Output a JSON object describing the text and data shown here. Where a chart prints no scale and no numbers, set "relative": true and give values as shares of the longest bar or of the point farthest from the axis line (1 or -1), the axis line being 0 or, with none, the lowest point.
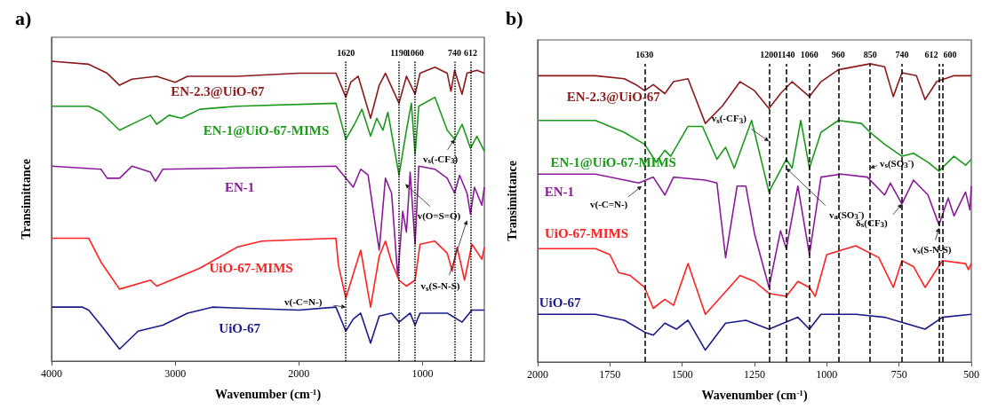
{
  "chart_data": [
    {
      "type": "line",
      "title": "a)",
      "xlabel": "Wavenumber (cm$^{-1}$)",
      "ylabel": "Transimittance",
      "relative": true,
      "xlim": [
        4000,
        500
      ],
      "xticks": [
        4000,
        3000,
        2000,
        1000
      ],
      "series": [
        {
          "name": "EN-2.3@UiO-67",
          "color": "#8b1a1a",
          "x": [
            4000,
            3700,
            3550,
            3450,
            3350,
            3150,
            3000,
            2900,
            2500,
            2000,
            1700,
            1620,
            1580,
            1520,
            1420,
            1350,
            1300,
            1190,
            1130,
            1060,
            1020,
            900,
            800,
            770,
            740,
            680,
            640,
            560,
            500
          ],
          "values": [
            1.0,
            0.99,
            0.96,
            0.92,
            0.94,
            0.95,
            0.93,
            0.95,
            0.95,
            0.96,
            0.96,
            0.88,
            0.93,
            0.95,
            0.81,
            0.92,
            0.96,
            0.86,
            0.95,
            0.89,
            0.96,
            0.98,
            0.96,
            0.9,
            0.97,
            0.89,
            0.96,
            0.97,
            0.96
          ]
        },
        {
          "name": "EN-1@UiO-67-MIMS",
          "color": "#1a9a1a",
          "x": [
            4000,
            3700,
            3600,
            3450,
            3300,
            3200,
            3150,
            3050,
            2950,
            2800,
            2500,
            1700,
            1620,
            1550,
            1490,
            1420,
            1370,
            1320,
            1280,
            1190,
            1130,
            1090,
            1060,
            1030,
            900,
            800,
            740,
            680,
            612,
            560,
            500
          ],
          "values": [
            0.85,
            0.85,
            0.83,
            0.77,
            0.8,
            0.82,
            0.79,
            0.82,
            0.81,
            0.84,
            0.85,
            0.86,
            0.74,
            0.79,
            0.84,
            0.75,
            0.81,
            0.77,
            0.83,
            0.62,
            0.77,
            0.86,
            0.69,
            0.85,
            0.88,
            0.77,
            0.74,
            0.79,
            0.71,
            0.75,
            0.7
          ]
        },
        {
          "name": "EN-1",
          "color": "#8b1a9b",
          "x": [
            4000,
            3600,
            3550,
            3450,
            3350,
            3200,
            3160,
            3100,
            1700,
            1560,
            1500,
            1440,
            1380,
            1350,
            1300,
            1250,
            1200,
            1160,
            1130,
            1100,
            1060,
            1030,
            900,
            800,
            740,
            700,
            640,
            612,
            580,
            520,
            500
          ],
          "values": [
            0.65,
            0.64,
            0.61,
            0.61,
            0.65,
            0.63,
            0.6,
            0.64,
            0.65,
            0.58,
            0.64,
            0.62,
            0.45,
            0.37,
            0.61,
            0.56,
            0.28,
            0.5,
            0.43,
            0.63,
            0.39,
            0.65,
            0.64,
            0.61,
            0.56,
            0.62,
            0.56,
            0.49,
            0.58,
            0.52,
            0.58
          ]
        },
        {
          "name": "UiO-67-MIMS",
          "color": "#ff2020",
          "x": [
            4000,
            3700,
            3600,
            3450,
            3200,
            3150,
            2800,
            2500,
            2300,
            1700,
            1680,
            1620,
            1560,
            1500,
            1420,
            1350,
            1300,
            1250,
            1190,
            1130,
            1060,
            1020,
            900,
            800,
            760,
            720,
            660,
            600,
            520,
            500
          ],
          "values": [
            0.41,
            0.41,
            0.33,
            0.24,
            0.27,
            0.25,
            0.31,
            0.38,
            0.4,
            0.41,
            0.32,
            0.21,
            0.29,
            0.37,
            0.18,
            0.35,
            0.4,
            0.33,
            0.27,
            0.25,
            0.27,
            0.39,
            0.4,
            0.36,
            0.3,
            0.38,
            0.27,
            0.39,
            0.34,
            0.38
          ]
        },
        {
          "name": "UiO-67",
          "color": "#1a1a8b",
          "x": [
            4000,
            3750,
            3700,
            3600,
            3450,
            3300,
            3100,
            2900,
            2700,
            2000,
            1700,
            1620,
            1560,
            1500,
            1420,
            1350,
            1250,
            1190,
            1100,
            1060,
            1020,
            900,
            800,
            680,
            600,
            500
          ],
          "values": [
            0.18,
            0.18,
            0.17,
            0.12,
            0.04,
            0.1,
            0.12,
            0.16,
            0.18,
            0.17,
            0.18,
            0.1,
            0.14,
            0.16,
            0.06,
            0.15,
            0.16,
            0.13,
            0.16,
            0.12,
            0.16,
            0.16,
            0.16,
            0.13,
            0.17,
            0.17
          ]
        }
      ],
      "ref_lines": [
        {
          "axis": "x",
          "value": 1620,
          "label": "1620",
          "line_style": "dotted"
        },
        {
          "axis": "x",
          "value": 1190,
          "label": "1190",
          "line_style": "dotted"
        },
        {
          "axis": "x",
          "value": 1060,
          "label": "1060",
          "line_style": "dotted"
        },
        {
          "axis": "x",
          "value": 740,
          "label": "740",
          "line_style": "dotted"
        },
        {
          "axis": "x",
          "value": 612,
          "label": "612",
          "line_style": "dotted"
        }
      ],
      "annotations": [
        {
          "text": "v(-C=N-)",
          "x": 1620,
          "y": 0.18
        },
        {
          "text": "v$_{s}$(-CF$_{3}$)",
          "x": 740,
          "y": 0.74
        },
        {
          "text": "v(O=S=O)",
          "x": 1140,
          "y": 0.59
        },
        {
          "text": "v$_{s}$(S-N-S)",
          "x": 640,
          "y": 0.47
        }
      ]
    },
    {
      "type": "line",
      "title": "b)",
      "xlabel": "Wavenumber (cm$^{-1}$)",
      "ylabel": "Transimittance",
      "relative": true,
      "xlim": [
        2000,
        500
      ],
      "xticks": [
        2000,
        1750,
        1500,
        1250,
        1000,
        750,
        500
      ],
      "series": [
        {
          "name": "EN-2.3@UiO-67",
          "color": "#8b1a1a",
          "x": [
            2000,
            1800,
            1700,
            1660,
            1630,
            1600,
            1560,
            1530,
            1480,
            1420,
            1360,
            1300,
            1250,
            1200,
            1160,
            1120,
            1060,
            1020,
            960,
            850,
            800,
            770,
            740,
            690,
            660,
            620,
            560,
            500
          ],
          "values": [
            0.96,
            0.96,
            0.95,
            0.93,
            0.91,
            0.93,
            0.9,
            0.94,
            0.95,
            0.8,
            0.86,
            0.94,
            0.91,
            0.85,
            0.9,
            0.94,
            0.89,
            0.94,
            0.98,
            1.0,
            0.99,
            0.89,
            0.97,
            0.96,
            0.88,
            0.94,
            0.96,
            0.96
          ]
        },
        {
          "name": "EN-1@UiO-67-MIMS",
          "color": "#1a9a1a",
          "x": [
            2000,
            1800,
            1700,
            1630,
            1590,
            1560,
            1540,
            1480,
            1430,
            1380,
            1350,
            1320,
            1260,
            1200,
            1140,
            1120,
            1090,
            1060,
            1020,
            960,
            880,
            850,
            800,
            740,
            700,
            650,
            612,
            560,
            520,
            500
          ],
          "values": [
            0.81,
            0.81,
            0.77,
            0.73,
            0.67,
            0.71,
            0.69,
            0.79,
            0.79,
            0.68,
            0.72,
            0.65,
            0.81,
            0.57,
            0.68,
            0.65,
            0.81,
            0.65,
            0.77,
            0.81,
            0.8,
            0.77,
            0.73,
            0.69,
            0.7,
            0.67,
            0.64,
            0.69,
            0.66,
            0.68
          ]
        },
        {
          "name": "EN-1",
          "color": "#8b1a9b",
          "x": [
            2000,
            1800,
            1650,
            1600,
            1560,
            1530,
            1420,
            1380,
            1350,
            1310,
            1280,
            1250,
            1200,
            1160,
            1140,
            1100,
            1060,
            1020,
            950,
            860,
            800,
            780,
            740,
            700,
            650,
            612,
            580,
            560,
            520,
            505,
            500
          ],
          "values": [
            0.63,
            0.63,
            0.6,
            0.62,
            0.56,
            0.62,
            0.61,
            0.6,
            0.35,
            0.59,
            0.59,
            0.43,
            0.25,
            0.44,
            0.38,
            0.59,
            0.36,
            0.62,
            0.63,
            0.62,
            0.56,
            0.6,
            0.53,
            0.61,
            0.56,
            0.46,
            0.55,
            0.49,
            0.57,
            0.51,
            0.59
          ]
        },
        {
          "name": "UiO-67-MIMS",
          "color": "#ff2020",
          "x": [
            2000,
            1800,
            1750,
            1720,
            1680,
            1630,
            1600,
            1560,
            1530,
            1480,
            1420,
            1300,
            1250,
            1200,
            1140,
            1100,
            1060,
            1040,
            1000,
            900,
            820,
            770,
            740,
            700,
            660,
            600,
            520,
            510,
            500
          ],
          "values": [
            0.38,
            0.38,
            0.36,
            0.3,
            0.29,
            0.25,
            0.18,
            0.21,
            0.19,
            0.33,
            0.16,
            0.29,
            0.27,
            0.23,
            0.22,
            0.27,
            0.25,
            0.22,
            0.36,
            0.39,
            0.35,
            0.25,
            0.34,
            0.32,
            0.25,
            0.34,
            0.33,
            0.31,
            0.33
          ]
        },
        {
          "name": "UiO-67",
          "color": "#1a1a8b",
          "x": [
            2000,
            1800,
            1700,
            1630,
            1600,
            1560,
            1520,
            1480,
            1420,
            1350,
            1280,
            1200,
            1100,
            1060,
            1020,
            900,
            800,
            660,
            600,
            500
          ],
          "values": [
            0.16,
            0.16,
            0.14,
            0.1,
            0.09,
            0.13,
            0.11,
            0.14,
            0.04,
            0.13,
            0.14,
            0.11,
            0.15,
            0.11,
            0.16,
            0.16,
            0.15,
            0.11,
            0.15,
            0.16
          ]
        }
      ],
      "ref_lines": [
        {
          "axis": "x",
          "value": 1630,
          "label": "1630",
          "line_style": "dashed"
        },
        {
          "axis": "x",
          "value": 1200,
          "label": "1200",
          "line_style": "dashed"
        },
        {
          "axis": "x",
          "value": 1140,
          "label": "1140",
          "line_style": "dashed"
        },
        {
          "axis": "x",
          "value": 1060,
          "label": "1060",
          "line_style": "dashed"
        },
        {
          "axis": "x",
          "value": 960,
          "label": "960",
          "line_style": "dashed"
        },
        {
          "axis": "x",
          "value": 850,
          "label": "850",
          "line_style": "dashed"
        },
        {
          "axis": "x",
          "value": 740,
          "label": "740",
          "line_style": "dashed"
        },
        {
          "axis": "x",
          "value": 612,
          "label": "612",
          "line_style": "dashed"
        },
        {
          "axis": "x",
          "value": 600,
          "label": "600",
          "line_style": "dashed"
        }
      ],
      "annotations": [
        {
          "text": "v(-C=N-)",
          "x": 1640,
          "y": 0.59
        },
        {
          "text": "v$_{s}$(-CF$_{3}$)",
          "x": 1200,
          "y": 0.74
        },
        {
          "text": "v$_{s}$(SO$_{3}$$^{-}$)",
          "x": 850,
          "y": 0.65
        },
        {
          "text": "v$_{a}$(SO$_{3}$$^{-}$)",
          "x": 1140,
          "y": 0.65
        },
        {
          "text": "δ$_{s}$(CF$_{3}$)",
          "x": 740,
          "y": 0.53
        },
        {
          "text": "v$_{s}$(S-N-S)",
          "x": 612,
          "y": 0.45
        }
      ]
    }
  ]
}
